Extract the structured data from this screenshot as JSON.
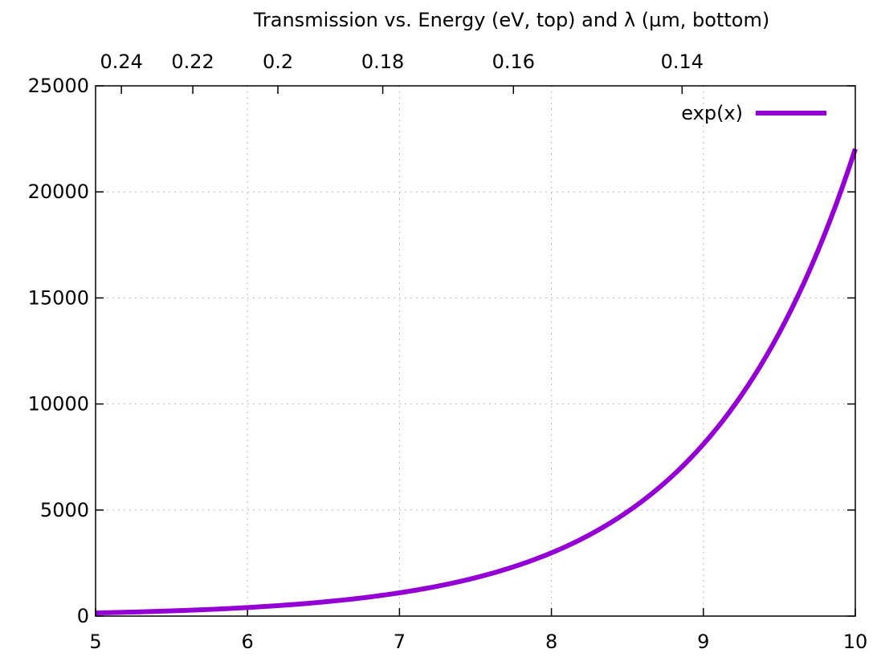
{
  "chart_data": {
    "type": "line",
    "title": "Transmission vs. Energy (eV, top) and λ (µm, bottom)",
    "xlabel": "",
    "ylabel": "",
    "xlim": [
      5,
      10
    ],
    "ylim": [
      0,
      25000
    ],
    "x_ticks": [
      5,
      6,
      7,
      8,
      9,
      10
    ],
    "x_tick_labels": [
      "5",
      "6",
      "7",
      "8",
      "9",
      "10"
    ],
    "y_ticks": [
      0,
      5000,
      10000,
      15000,
      20000,
      25000
    ],
    "y_tick_labels": [
      "0",
      "5000",
      "10000",
      "15000",
      "20000",
      "25000"
    ],
    "x2_ticks": [
      {
        "label": "0.24",
        "x": 5.17
      },
      {
        "label": "0.22",
        "x": 5.64
      },
      {
        "label": "0.2",
        "x": 6.2
      },
      {
        "label": "0.18",
        "x": 6.89
      },
      {
        "label": "0.16",
        "x": 7.75
      },
      {
        "label": "0.14",
        "x": 8.86
      }
    ],
    "grid": true,
    "legend_position": "top-right",
    "series": [
      {
        "name": "exp(x)",
        "color": "#9400d3",
        "function": "exp(x)",
        "x": [
          5.0,
          5.25,
          5.5,
          5.75,
          6.0,
          6.25,
          6.5,
          6.75,
          7.0,
          7.25,
          7.5,
          7.75,
          8.0,
          8.25,
          8.5,
          8.75,
          9.0,
          9.25,
          9.5,
          9.75,
          10.0
        ],
        "values": [
          148.4,
          190.6,
          244.7,
          314.2,
          403.4,
          518.0,
          665.1,
          854.1,
          1096.6,
          1408.1,
          1808.0,
          2321.6,
          2981.0,
          3827.6,
          4914.8,
          6310.7,
          8103.1,
          10404.6,
          13359.7,
          17154.2,
          22026.5
        ]
      }
    ]
  }
}
